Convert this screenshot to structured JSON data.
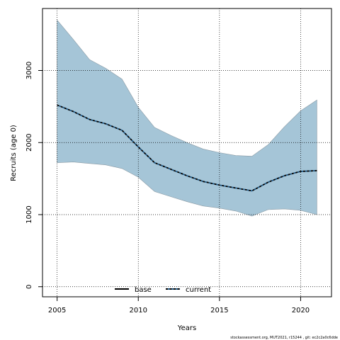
{
  "chart_data": {
    "type": "line",
    "xlabel": "Years",
    "ylabel": "Recruits (age 0)",
    "xlim": [
      2004.1,
      2021.9
    ],
    "ylim": [
      -140,
      3860
    ],
    "x_ticks": [
      2005,
      2010,
      2015,
      2020
    ],
    "y_ticks": [
      0,
      1000,
      2000,
      3000
    ],
    "grid": true,
    "legend_position": "bottom-center",
    "band": {
      "color": "#a5c5d7",
      "x": [
        2005,
        2006,
        2007,
        2008,
        2009,
        2010,
        2011,
        2012,
        2013,
        2014,
        2015,
        2016,
        2017,
        2018,
        2019,
        2020,
        2021
      ],
      "upper": [
        3700,
        3430,
        3150,
        3030,
        2880,
        2490,
        2210,
        2100,
        2000,
        1910,
        1860,
        1820,
        1810,
        1970,
        2220,
        2440,
        2590
      ],
      "lower": [
        1720,
        1730,
        1710,
        1690,
        1640,
        1520,
        1320,
        1250,
        1180,
        1120,
        1090,
        1050,
        980,
        1070,
        1080,
        1060,
        1000
      ]
    },
    "series": [
      {
        "name": "base",
        "style": "solid",
        "color": "#000000",
        "x": [],
        "values": []
      },
      {
        "name": "current",
        "style": "dashed",
        "color": "#000000",
        "dash_color": "#1f5b8a",
        "x": [
          2005,
          2006,
          2007,
          2008,
          2009,
          2010,
          2011,
          2012,
          2013,
          2014,
          2015,
          2016,
          2017,
          2018,
          2019,
          2020,
          2021
        ],
        "values": [
          2520,
          2430,
          2320,
          2260,
          2170,
          1940,
          1720,
          1630,
          1540,
          1460,
          1410,
          1370,
          1330,
          1450,
          1540,
          1600,
          1610
        ]
      }
    ],
    "footer": "stockassessment.org, MUT2021, r15244 , git: ec2c2a0c6dde"
  }
}
